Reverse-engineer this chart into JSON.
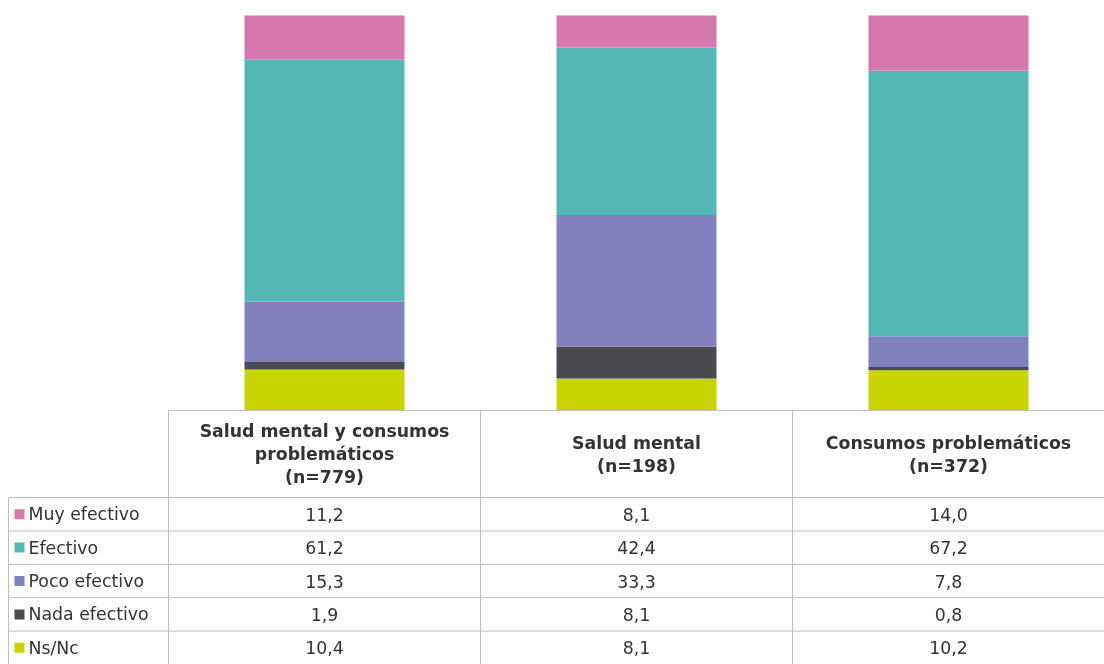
{
  "chart_data": {
    "type": "bar",
    "stacked": true,
    "legend": "bottom",
    "grid": false,
    "tick_labels": "x",
    "categories": [
      "Salud mental y consumos problemáticos (n=779)",
      "Salud mental (n=198)",
      "Consumos problemáticos (n=372)"
    ],
    "series": [
      {
        "name": "Ns/Nc",
        "color": "#c8d400",
        "values": [
          10.4,
          8.1,
          10.2
        ],
        "value_labels": [
          "10,4",
          "8,1",
          "10,2"
        ]
      },
      {
        "name": "Nada efectivo",
        "color": "#4a4b50",
        "values": [
          1.9,
          8.1,
          0.8
        ],
        "value_labels": [
          "1,9",
          "8,1",
          "0,8"
        ]
      },
      {
        "name": "Poco efectivo",
        "color": "#8281bd",
        "values": [
          15.3,
          33.3,
          7.8
        ],
        "value_labels": [
          "15,3",
          "33,3",
          "7,8"
        ]
      },
      {
        "name": "Efectivo",
        "color": "#55b7b3",
        "values": [
          61.2,
          42.4,
          67.2
        ],
        "value_labels": [
          "61,2",
          "42,4",
          "67,2"
        ]
      },
      {
        "name": "Muy efectivo",
        "color": "#d678ab",
        "values": [
          11.2,
          8.1,
          14.0
        ],
        "value_labels": [
          "11,2",
          "8,1",
          "14,0"
        ]
      }
    ]
  }
}
